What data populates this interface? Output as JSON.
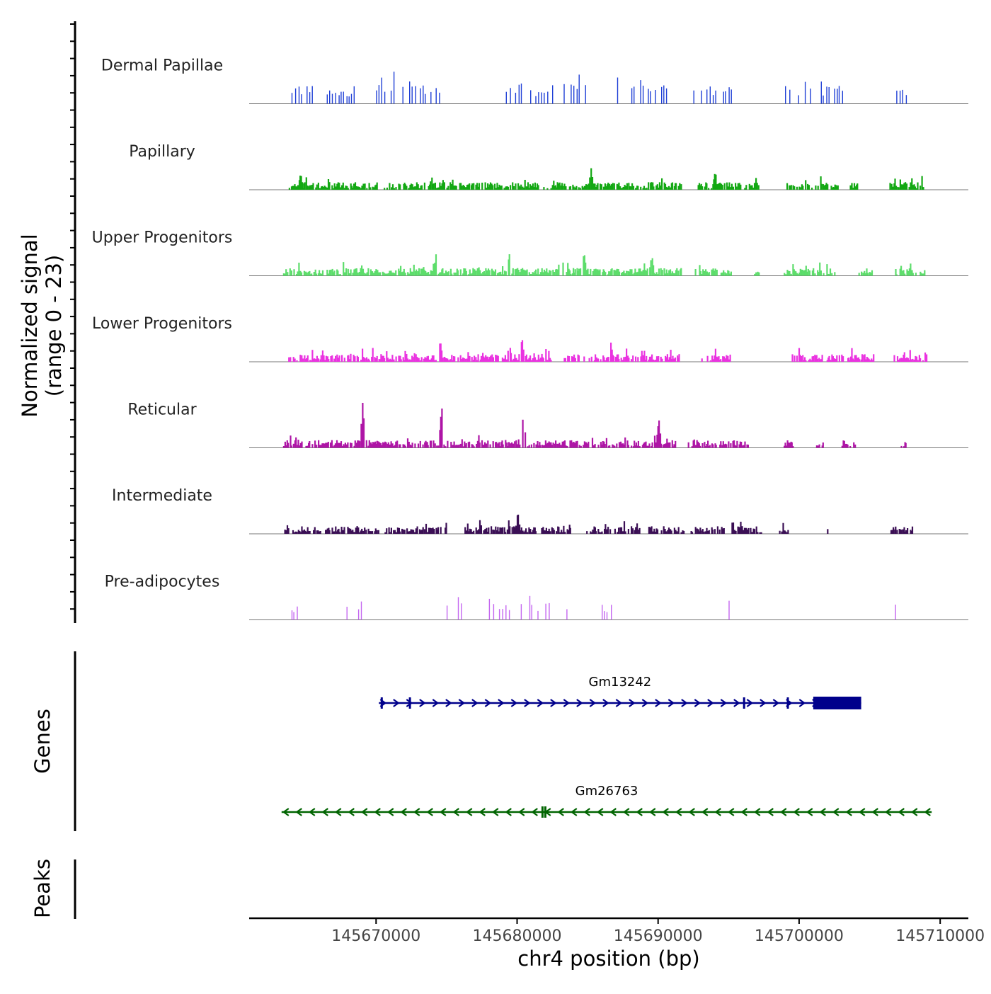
{
  "chart_data": {
    "type": "area",
    "title": "",
    "y_axis_title": "Normalized signal",
    "y_axis_subtitle": "(range 0 - 23)",
    "ylim": [
      0,
      23
    ],
    "xlabel": "chr4 position (bp)",
    "xlim": [
      145661000,
      145712000
    ],
    "x_ticks": [
      {
        "value": 145670000,
        "label": "145670000"
      },
      {
        "value": 145680000,
        "label": "145680000"
      },
      {
        "value": 145690000,
        "label": "145690000"
      },
      {
        "value": 145700000,
        "label": "145700000"
      },
      {
        "value": 145710000,
        "label": "145710000"
      }
    ],
    "tracks": [
      {
        "name": "Dermal Papillae",
        "color": "#1f3fd6",
        "style": "spiky",
        "regions": [
          [
            145664000,
            145665500
          ],
          [
            145666500,
            145668500
          ],
          [
            145669800,
            145675000
          ],
          [
            145679200,
            145682500
          ],
          [
            145683300,
            145684900
          ],
          [
            145686700,
            145687200
          ],
          [
            145688100,
            145690600
          ],
          [
            145692500,
            145695200
          ],
          [
            145699000,
            145703200
          ],
          [
            145706700,
            145707800
          ]
        ],
        "peaks": [
          [
            145680400,
            21
          ],
          [
            145687200,
            21
          ],
          [
            145683400,
            15
          ],
          [
            145671200,
            16
          ]
        ]
      },
      {
        "name": "Papillary",
        "color": "#13a813",
        "style": "dense",
        "regions": [
          [
            145663700,
            145691600
          ],
          [
            145692800,
            145695800
          ],
          [
            145696100,
            145697100
          ],
          [
            145699100,
            145702700
          ],
          [
            145703500,
            145704200
          ],
          [
            145706400,
            145708800
          ]
        ],
        "peaks": [
          [
            145685200,
            9
          ],
          [
            145664600,
            7
          ],
          [
            145694000,
            8
          ]
        ]
      },
      {
        "name": "Upper Progenitors",
        "color": "#5ddd6b",
        "style": "dense",
        "regions": [
          [
            145663400,
            145691600
          ],
          [
            145692600,
            145695200
          ],
          [
            145696800,
            145697200
          ],
          [
            145698800,
            145702500
          ],
          [
            145704200,
            145705200
          ],
          [
            145706800,
            145708900
          ]
        ],
        "peaks": [
          [
            145679400,
            9
          ],
          [
            145684700,
            10
          ],
          [
            145689500,
            9
          ],
          [
            145674200,
            9
          ]
        ]
      },
      {
        "name": "Lower Progenitors",
        "color": "#ea33e0",
        "style": "dense",
        "regions": [
          [
            145663700,
            145682500
          ],
          [
            145683300,
            145686500
          ],
          [
            145686600,
            145691500
          ],
          [
            145692900,
            145695200
          ],
          [
            145699300,
            145705300
          ],
          [
            145706700,
            145709100
          ]
        ],
        "peaks": [
          [
            145680300,
            10
          ],
          [
            145674500,
            9
          ],
          [
            145679400,
            8
          ],
          [
            145686600,
            8
          ]
        ]
      },
      {
        "name": "Reticular",
        "color": "#ae15a6",
        "style": "dense",
        "regions": [
          [
            145663400,
            145681200
          ],
          [
            145681300,
            145691300
          ],
          [
            145692100,
            145696400
          ],
          [
            145698900,
            145699600
          ],
          [
            145701200,
            145701700
          ],
          [
            145703000,
            145704000
          ],
          [
            145707200,
            145707600
          ]
        ],
        "peaks": [
          [
            145669000,
            19
          ],
          [
            145674600,
            18
          ],
          [
            145680400,
            15
          ],
          [
            145690000,
            12
          ]
        ]
      },
      {
        "name": "Intermediate",
        "color": "#3b0f55",
        "style": "dense",
        "regions": [
          [
            145663400,
            145670200
          ],
          [
            145670600,
            145675000
          ],
          [
            145676200,
            145681400
          ],
          [
            145681700,
            145683800
          ],
          [
            145684900,
            145688700
          ],
          [
            145689300,
            145691800
          ],
          [
            145692300,
            145694700
          ],
          [
            145695200,
            145697300
          ],
          [
            145698500,
            145699200
          ],
          [
            145701800,
            145702000
          ],
          [
            145706400,
            145708000
          ]
        ],
        "peaks": [
          [
            145680000,
            9
          ],
          [
            145684000,
            9
          ],
          [
            145675000,
            7
          ]
        ]
      },
      {
        "name": "Pre-adipocytes",
        "color": "#c466f0",
        "style": "spiky",
        "regions": [
          [
            145664000,
            145664500
          ],
          [
            145667900,
            145669000
          ],
          [
            145675000,
            145677200
          ],
          [
            145678000,
            145681600
          ],
          [
            145682000,
            145682500
          ],
          [
            145683500,
            145683900
          ],
          [
            145686000,
            145686800
          ],
          [
            145695000,
            145695200
          ],
          [
            145706800,
            145707000
          ]
        ],
        "peaks": [
          [
            145679800,
            23
          ],
          [
            145685800,
            17
          ],
          [
            145677900,
            16
          ],
          [
            145680400,
            18
          ],
          [
            145675700,
            17
          ]
        ]
      }
    ],
    "genes": [
      {
        "name": "Gm13242",
        "strand": "+",
        "start": 145670200,
        "end": 145704400,
        "color": "#00008b",
        "cds": [
          [
            145701000,
            145704400
          ]
        ],
        "exon_ticks": [
          145670400,
          145672400,
          145696100,
          145699200
        ]
      },
      {
        "name": "Gm26763",
        "strand": "-",
        "start": 145663300,
        "end": 145709400,
        "color": "#006400",
        "cds": [],
        "exon_ticks": [
          145681800,
          145682000
        ]
      }
    ],
    "panel_labels": {
      "genes": "Genes",
      "peaks": "Peaks"
    },
    "peaks": []
  }
}
